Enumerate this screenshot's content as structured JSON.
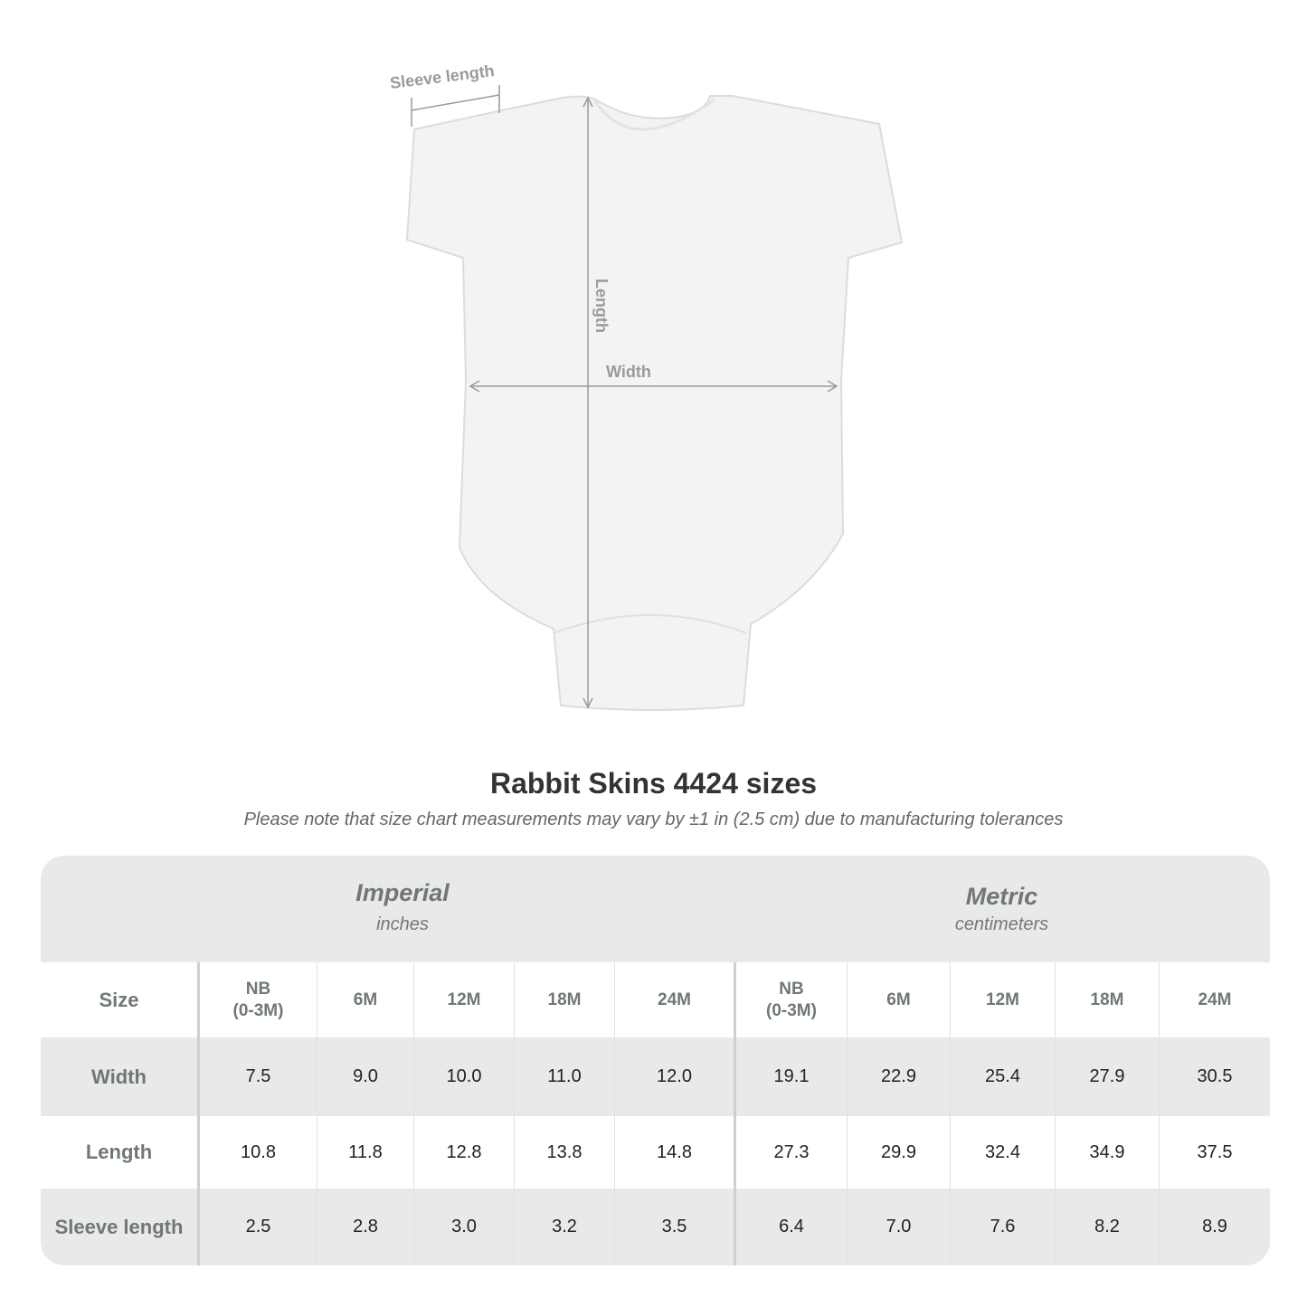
{
  "diagram": {
    "sleeve_label": "Sleeve length",
    "length_label": "Length",
    "width_label": "Width"
  },
  "title": "Rabbit Skins 4424 sizes",
  "note": "Please note that size chart measurements may vary by ±1 in (2.5 cm) due to manufacturing tolerances",
  "table": {
    "imperial": {
      "label": "Imperial",
      "unit": "inches"
    },
    "metric": {
      "label": "Metric",
      "unit": "centimeters"
    },
    "size_label": "Size",
    "sizes": [
      "NB\n(0-3M)",
      "6M",
      "12M",
      "18M",
      "24M"
    ],
    "rows": [
      {
        "label": "Width",
        "imperial": [
          "7.5",
          "9.0",
          "10.0",
          "11.0",
          "12.0"
        ],
        "metric": [
          "19.1",
          "22.9",
          "25.4",
          "27.9",
          "30.5"
        ]
      },
      {
        "label": "Length",
        "imperial": [
          "10.8",
          "11.8",
          "12.8",
          "13.8",
          "14.8"
        ],
        "metric": [
          "27.3",
          "29.9",
          "32.4",
          "34.9",
          "37.5"
        ]
      },
      {
        "label": "Sleeve length",
        "imperial": [
          "2.5",
          "2.8",
          "3.0",
          "3.2",
          "3.5"
        ],
        "metric": [
          "6.4",
          "7.0",
          "7.6",
          "8.2",
          "8.9"
        ]
      }
    ]
  }
}
